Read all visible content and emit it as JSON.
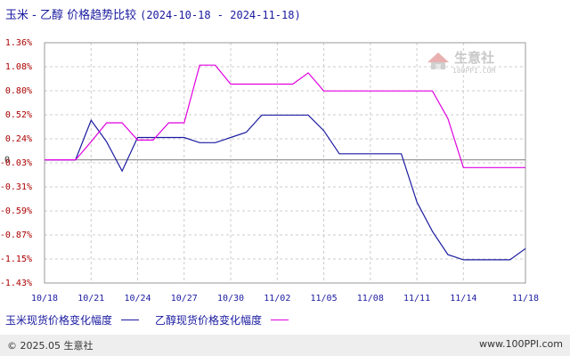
{
  "header": {
    "title": "玉米 - 乙醇 价格趋势比较",
    "date_range": "(2024-10-18 - 2024-11-18)"
  },
  "watermark": {
    "cn": "生意社",
    "url": "100PPI.COM",
    "icon": "house-logo-icon"
  },
  "footer": {
    "copyright": "© 2025.05 生意社",
    "site": "www.100PPI.com"
  },
  "chart_data": {
    "type": "line",
    "title": "玉米 - 乙醇 价格趋势比较",
    "subtitle": "(2024-10-18 - 2024-11-18)",
    "xlabel": "",
    "ylabel": "",
    "x_ticks": [
      "10/18",
      "10/21",
      "10/24",
      "10/27",
      "10/30",
      "11/02",
      "11/05",
      "11/08",
      "11/11",
      "11/14",
      "11/18"
    ],
    "y_ticks": [
      "1.36%",
      "1.08%",
      "0.80%",
      "0.52%",
      "0.24%",
      "-0.03%",
      "-0.31%",
      "-0.59%",
      "-0.87%",
      "-1.15%",
      "-1.43%"
    ],
    "zero_label": "0",
    "ylim": [
      -1.43,
      1.36
    ],
    "x": [
      "10/18",
      "10/19",
      "10/20",
      "10/21",
      "10/22",
      "10/23",
      "10/24",
      "10/25",
      "10/26",
      "10/27",
      "10/28",
      "10/29",
      "10/30",
      "10/31",
      "11/01",
      "11/02",
      "11/03",
      "11/04",
      "11/05",
      "11/06",
      "11/07",
      "11/08",
      "11/09",
      "11/10",
      "11/11",
      "11/12",
      "11/13",
      "11/14",
      "11/15",
      "11/16",
      "11/17",
      "11/18"
    ],
    "series": [
      {
        "name": "玉米现货价格变化幅度",
        "color": "#1a1aa0",
        "values": [
          0,
          0,
          0,
          0.46,
          0.21,
          -0.13,
          0.26,
          0.26,
          0.26,
          0.26,
          0.2,
          0.2,
          0.26,
          0.32,
          0.52,
          0.52,
          0.52,
          0.52,
          0.34,
          0.07,
          0.07,
          0.07,
          0.07,
          0.07,
          -0.49,
          -0.83,
          -1.1,
          -1.16,
          -1.16,
          -1.16,
          -1.16,
          -1.03
        ]
      },
      {
        "name": "乙醇现货价格变化幅度",
        "color": "#e000e0",
        "values": [
          0,
          0,
          0,
          0.21,
          0.43,
          0.43,
          0.23,
          0.23,
          0.43,
          0.43,
          1.1,
          1.1,
          0.88,
          0.88,
          0.88,
          0.88,
          0.88,
          1.01,
          0.8,
          0.8,
          0.8,
          0.8,
          0.8,
          0.8,
          0.8,
          0.8,
          0.48,
          -0.09,
          -0.09,
          -0.09,
          -0.09,
          -0.09
        ]
      }
    ],
    "grid": true,
    "legend_position": "bottom-left"
  }
}
